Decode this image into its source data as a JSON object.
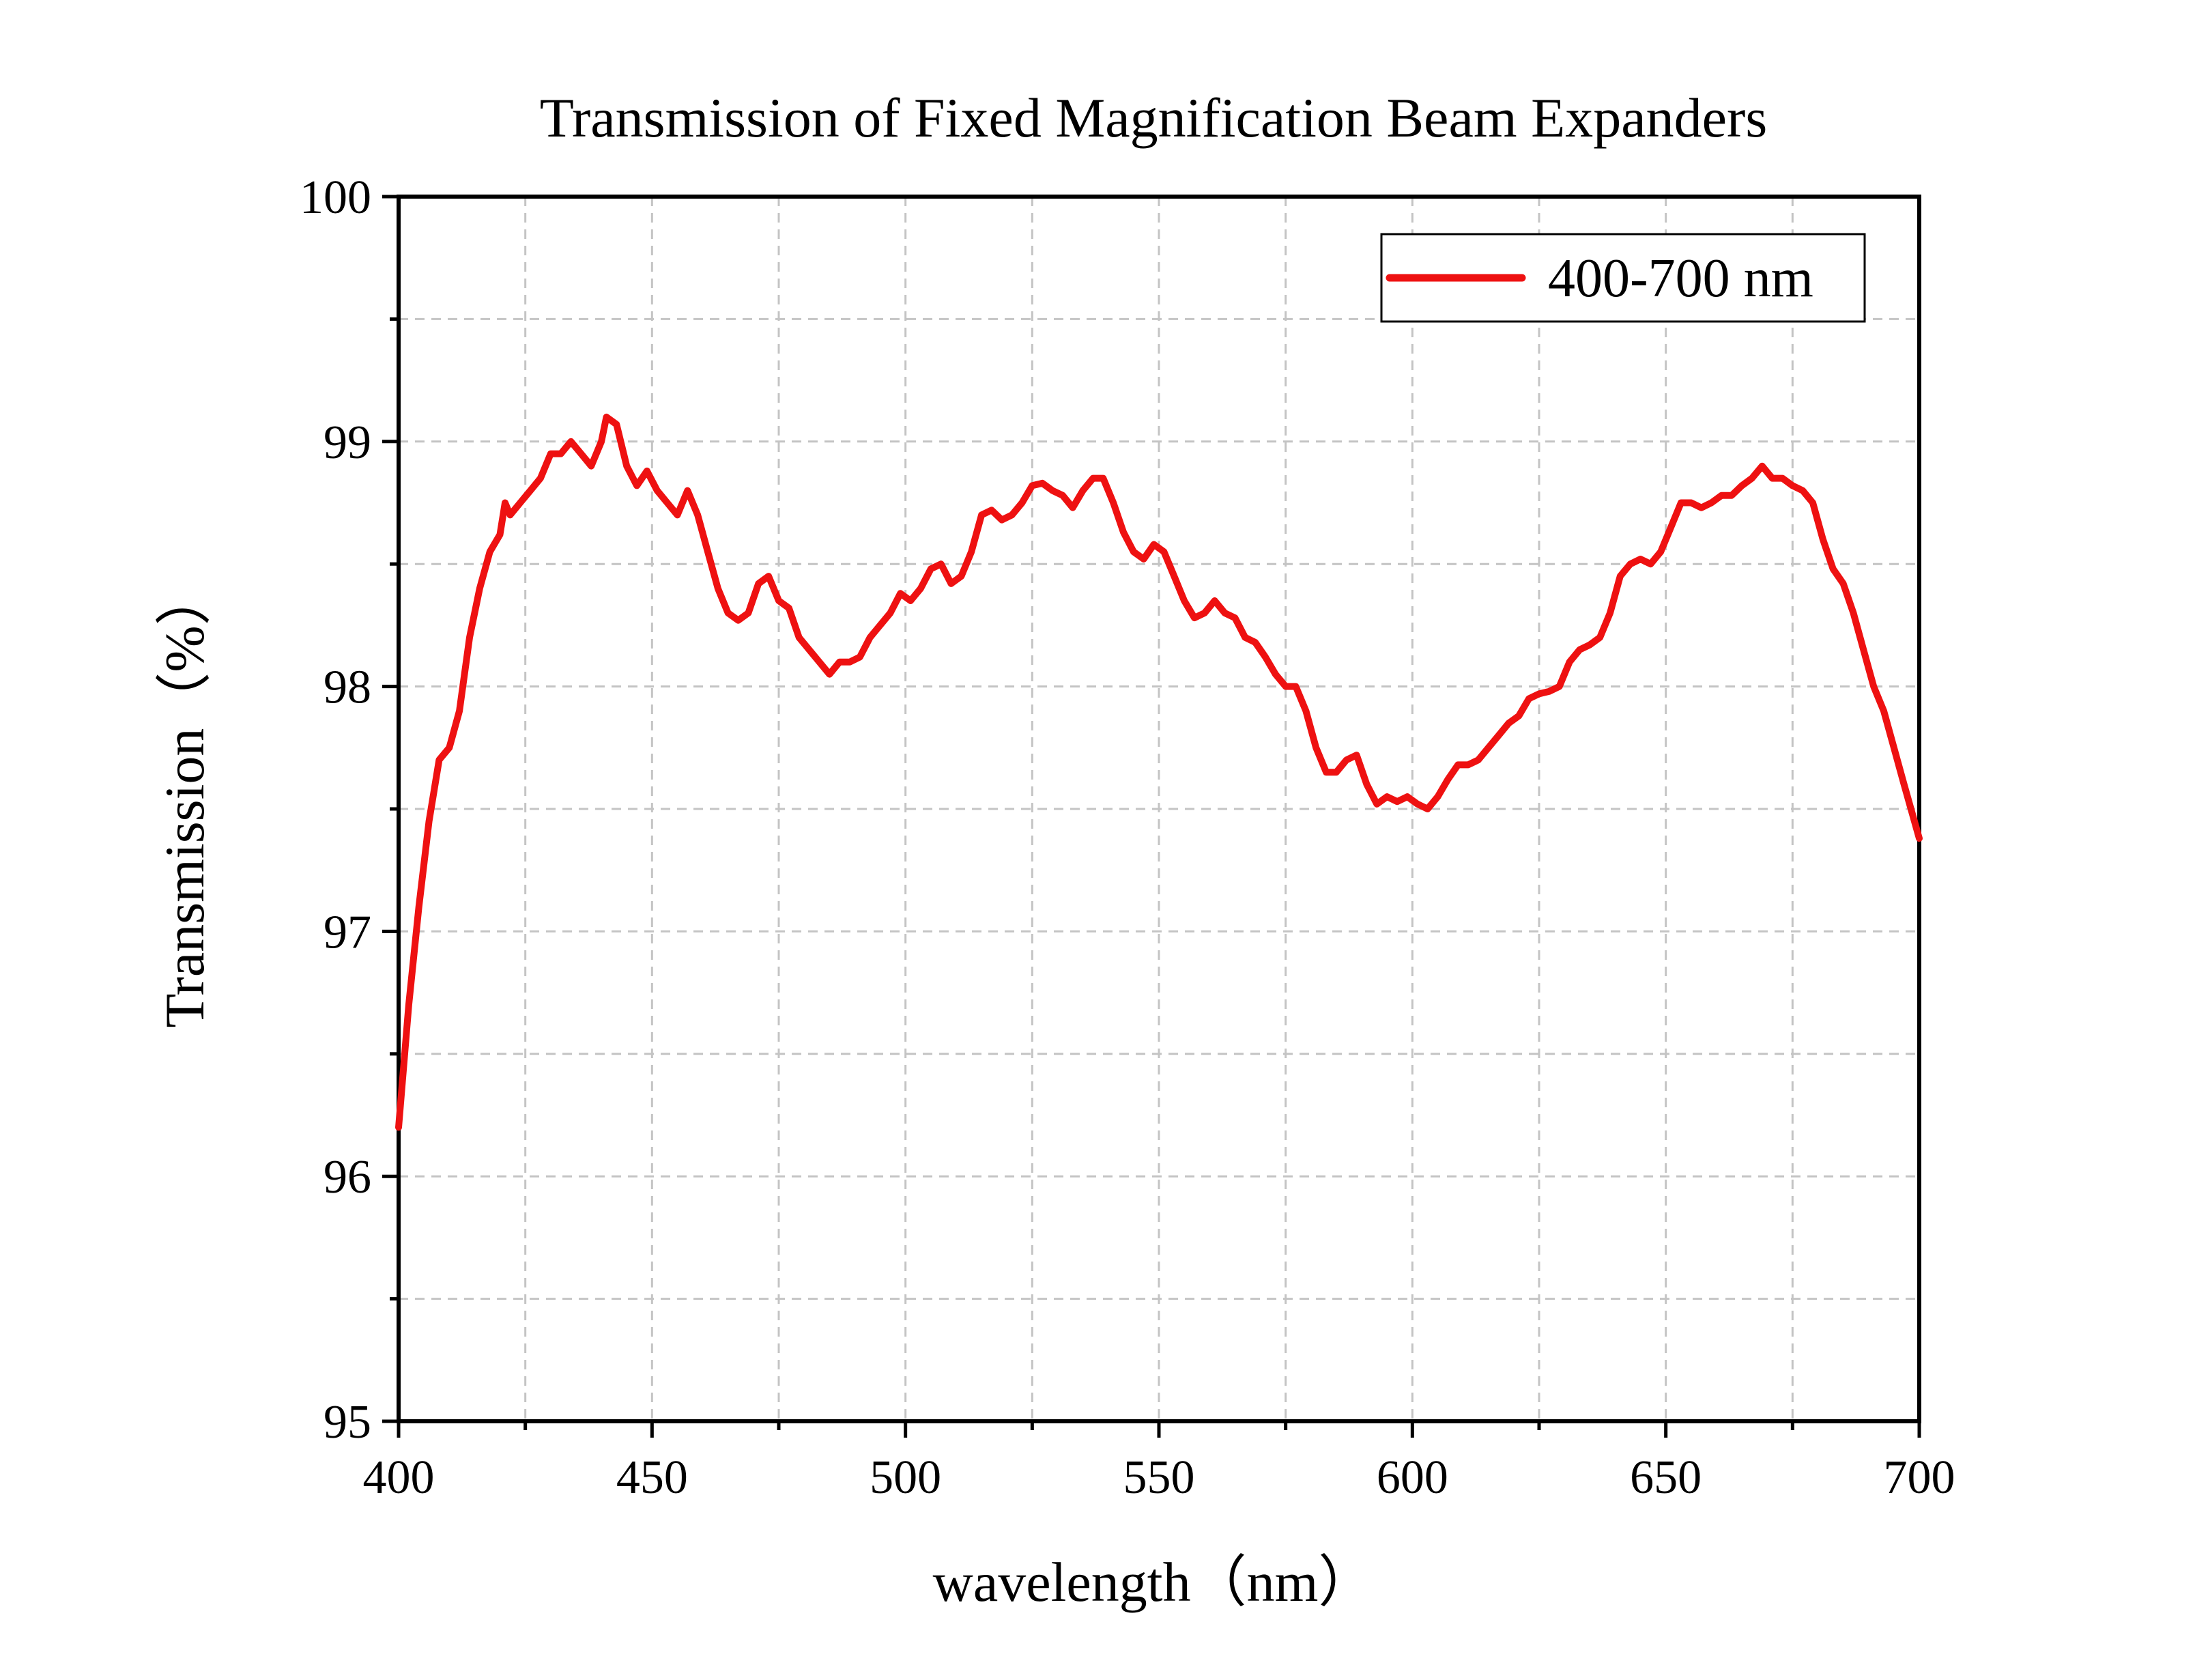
{
  "chart_data": {
    "type": "line",
    "title": "Transmission of Fixed Magnification Beam Expanders",
    "xlabel": "wavelength（nm）",
    "ylabel": "Transmission（%）",
    "xlim": [
      400,
      700
    ],
    "ylim": [
      95,
      100
    ],
    "xticks": [
      400,
      450,
      500,
      550,
      600,
      650,
      700
    ],
    "yticks": [
      95,
      96,
      97,
      98,
      99,
      100
    ],
    "grid": true,
    "legend": "top-right",
    "series": [
      {
        "name": "400-700 nm",
        "color": "#ee1111",
        "points": [
          [
            400,
            96.2
          ],
          [
            402,
            96.7
          ],
          [
            404,
            97.1
          ],
          [
            406,
            97.45
          ],
          [
            408,
            97.7
          ],
          [
            410,
            97.75
          ],
          [
            412,
            97.9
          ],
          [
            414,
            98.2
          ],
          [
            416,
            98.4
          ],
          [
            418,
            98.55
          ],
          [
            420,
            98.62
          ],
          [
            421,
            98.75
          ],
          [
            422,
            98.7
          ],
          [
            424,
            98.75
          ],
          [
            426,
            98.8
          ],
          [
            428,
            98.85
          ],
          [
            430,
            98.95
          ],
          [
            432,
            98.95
          ],
          [
            434,
            99.0
          ],
          [
            436,
            98.95
          ],
          [
            438,
            98.9
          ],
          [
            440,
            99.0
          ],
          [
            441,
            99.1
          ],
          [
            443,
            99.07
          ],
          [
            445,
            98.9
          ],
          [
            447,
            98.82
          ],
          [
            449,
            98.88
          ],
          [
            451,
            98.8
          ],
          [
            453,
            98.75
          ],
          [
            455,
            98.7
          ],
          [
            457,
            98.8
          ],
          [
            459,
            98.7
          ],
          [
            461,
            98.55
          ],
          [
            463,
            98.4
          ],
          [
            465,
            98.3
          ],
          [
            467,
            98.27
          ],
          [
            469,
            98.3
          ],
          [
            471,
            98.42
          ],
          [
            473,
            98.45
          ],
          [
            475,
            98.35
          ],
          [
            477,
            98.32
          ],
          [
            479,
            98.2
          ],
          [
            481,
            98.15
          ],
          [
            483,
            98.1
          ],
          [
            485,
            98.05
          ],
          [
            487,
            98.1
          ],
          [
            489,
            98.1
          ],
          [
            491,
            98.12
          ],
          [
            493,
            98.2
          ],
          [
            495,
            98.25
          ],
          [
            497,
            98.3
          ],
          [
            499,
            98.38
          ],
          [
            501,
            98.35
          ],
          [
            503,
            98.4
          ],
          [
            505,
            98.48
          ],
          [
            507,
            98.5
          ],
          [
            509,
            98.42
          ],
          [
            511,
            98.45
          ],
          [
            513,
            98.55
          ],
          [
            515,
            98.7
          ],
          [
            517,
            98.72
          ],
          [
            519,
            98.68
          ],
          [
            521,
            98.7
          ],
          [
            523,
            98.75
          ],
          [
            525,
            98.82
          ],
          [
            527,
            98.83
          ],
          [
            529,
            98.8
          ],
          [
            531,
            98.78
          ],
          [
            533,
            98.73
          ],
          [
            535,
            98.8
          ],
          [
            537,
            98.85
          ],
          [
            539,
            98.85
          ],
          [
            541,
            98.75
          ],
          [
            543,
            98.63
          ],
          [
            545,
            98.55
          ],
          [
            547,
            98.52
          ],
          [
            549,
            98.58
          ],
          [
            551,
            98.55
          ],
          [
            553,
            98.45
          ],
          [
            555,
            98.35
          ],
          [
            557,
            98.28
          ],
          [
            559,
            98.3
          ],
          [
            561,
            98.35
          ],
          [
            563,
            98.3
          ],
          [
            565,
            98.28
          ],
          [
            567,
            98.2
          ],
          [
            569,
            98.18
          ],
          [
            571,
            98.12
          ],
          [
            573,
            98.05
          ],
          [
            575,
            98.0
          ],
          [
            577,
            98.0
          ],
          [
            579,
            97.9
          ],
          [
            581,
            97.75
          ],
          [
            583,
            97.65
          ],
          [
            585,
            97.65
          ],
          [
            587,
            97.7
          ],
          [
            589,
            97.72
          ],
          [
            591,
            97.6
          ],
          [
            593,
            97.52
          ],
          [
            595,
            97.55
          ],
          [
            597,
            97.53
          ],
          [
            599,
            97.55
          ],
          [
            601,
            97.52
          ],
          [
            603,
            97.5
          ],
          [
            605,
            97.55
          ],
          [
            607,
            97.62
          ],
          [
            609,
            97.68
          ],
          [
            611,
            97.68
          ],
          [
            613,
            97.7
          ],
          [
            615,
            97.75
          ],
          [
            617,
            97.8
          ],
          [
            619,
            97.85
          ],
          [
            621,
            97.88
          ],
          [
            623,
            97.95
          ],
          [
            625,
            97.97
          ],
          [
            627,
            97.98
          ],
          [
            629,
            98.0
          ],
          [
            631,
            98.1
          ],
          [
            633,
            98.15
          ],
          [
            635,
            98.17
          ],
          [
            637,
            98.2
          ],
          [
            639,
            98.3
          ],
          [
            641,
            98.45
          ],
          [
            643,
            98.5
          ],
          [
            645,
            98.52
          ],
          [
            647,
            98.5
          ],
          [
            649,
            98.55
          ],
          [
            651,
            98.65
          ],
          [
            653,
            98.75
          ],
          [
            655,
            98.75
          ],
          [
            657,
            98.73
          ],
          [
            659,
            98.75
          ],
          [
            661,
            98.78
          ],
          [
            663,
            98.78
          ],
          [
            665,
            98.82
          ],
          [
            667,
            98.85
          ],
          [
            669,
            98.9
          ],
          [
            671,
            98.85
          ],
          [
            673,
            98.85
          ],
          [
            675,
            98.82
          ],
          [
            677,
            98.8
          ],
          [
            679,
            98.75
          ],
          [
            681,
            98.6
          ],
          [
            683,
            98.48
          ],
          [
            685,
            98.42
          ],
          [
            687,
            98.3
          ],
          [
            689,
            98.15
          ],
          [
            691,
            98.0
          ],
          [
            693,
            97.9
          ],
          [
            695,
            97.75
          ],
          [
            697,
            97.6
          ],
          [
            700,
            97.38
          ]
        ]
      }
    ]
  }
}
